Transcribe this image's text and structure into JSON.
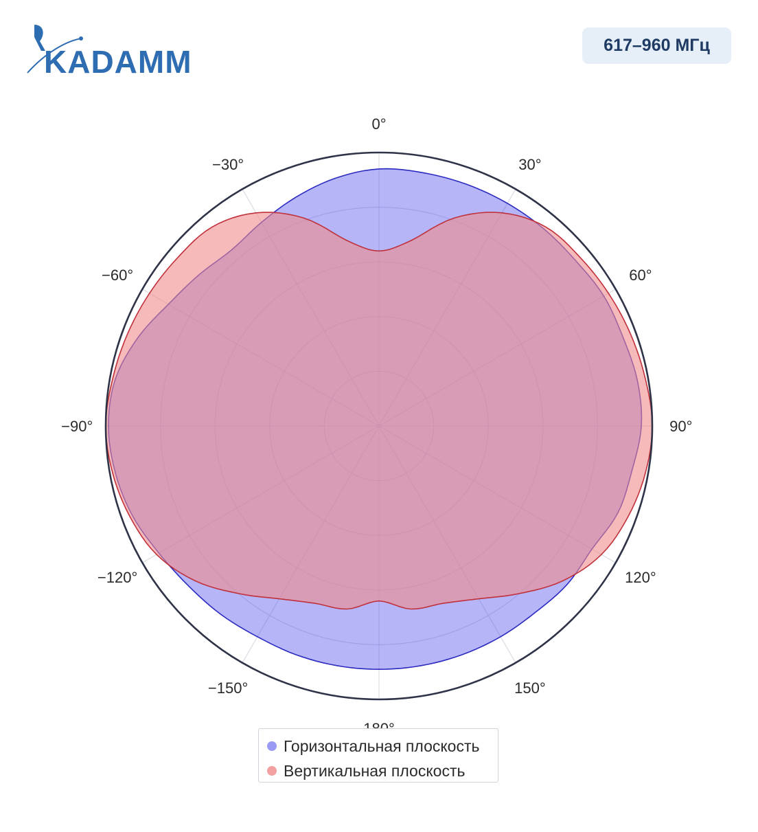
{
  "header": {
    "logo_text": "KADAMM",
    "frequency_badge": "617–960 МГц"
  },
  "colors": {
    "brand_blue": "#2f6db3",
    "badge_bg": "#e6eef7",
    "badge_text": "#1f3b63",
    "horizontal": "#5b5bf0",
    "horizontal_line": "#2a2ac0",
    "vertical": "#f08c8c",
    "vertical_line": "#c0303a"
  },
  "chart_data": {
    "type": "polar-area",
    "angular_axis": {
      "direction": "clockwise",
      "zero": "top",
      "tick_labels": [
        "0°",
        "30°",
        "60°",
        "90°",
        "120°",
        "150°",
        "180°",
        "−150°",
        "−120°",
        "−90°",
        "−60°",
        "−30°"
      ],
      "tick_angles": [
        0,
        30,
        60,
        90,
        120,
        150,
        180,
        -150,
        -120,
        -90,
        -60,
        -30
      ]
    },
    "radial_axis": {
      "range": [
        0,
        1
      ],
      "rings": [
        0.2,
        0.4,
        0.6,
        0.8,
        1.0
      ],
      "tick_labels_shown": false
    },
    "legend_position": "bottom-center",
    "series": [
      {
        "name": "Горизонтальная плоскость",
        "angles": [
          0,
          10,
          20,
          30,
          40,
          50,
          60,
          70,
          80,
          90,
          100,
          110,
          120,
          130,
          140,
          150,
          160,
          170,
          180,
          190,
          200,
          210,
          220,
          230,
          240,
          250,
          260,
          270,
          280,
          290,
          300,
          310,
          320,
          330,
          340,
          350
        ],
        "values": [
          0.94,
          0.94,
          0.94,
          0.94,
          0.94,
          0.94,
          0.95,
          0.95,
          0.96,
          0.96,
          0.94,
          0.93,
          0.9,
          0.9,
          0.89,
          0.89,
          0.89,
          0.89,
          0.89,
          0.89,
          0.89,
          0.89,
          0.9,
          0.91,
          0.93,
          0.96,
          0.98,
          0.99,
          0.98,
          0.94,
          0.89,
          0.86,
          0.84,
          0.86,
          0.89,
          0.92
        ]
      },
      {
        "name": "Вертикальная плоскость",
        "angles": [
          0,
          10,
          20,
          30,
          40,
          50,
          60,
          70,
          80,
          90,
          100,
          110,
          120,
          130,
          140,
          150,
          160,
          170,
          180,
          190,
          200,
          210,
          220,
          230,
          240,
          250,
          260,
          270,
          280,
          290,
          300,
          310,
          320,
          330,
          340,
          350
        ],
        "values": [
          0.64,
          0.69,
          0.81,
          0.9,
          0.95,
          0.96,
          0.97,
          0.98,
          0.99,
          1.0,
          0.99,
          0.97,
          0.94,
          0.88,
          0.8,
          0.73,
          0.69,
          0.68,
          0.64,
          0.68,
          0.69,
          0.73,
          0.8,
          0.88,
          0.94,
          0.97,
          0.99,
          1.0,
          0.99,
          0.98,
          0.97,
          0.96,
          0.95,
          0.9,
          0.81,
          0.69
        ]
      }
    ]
  }
}
